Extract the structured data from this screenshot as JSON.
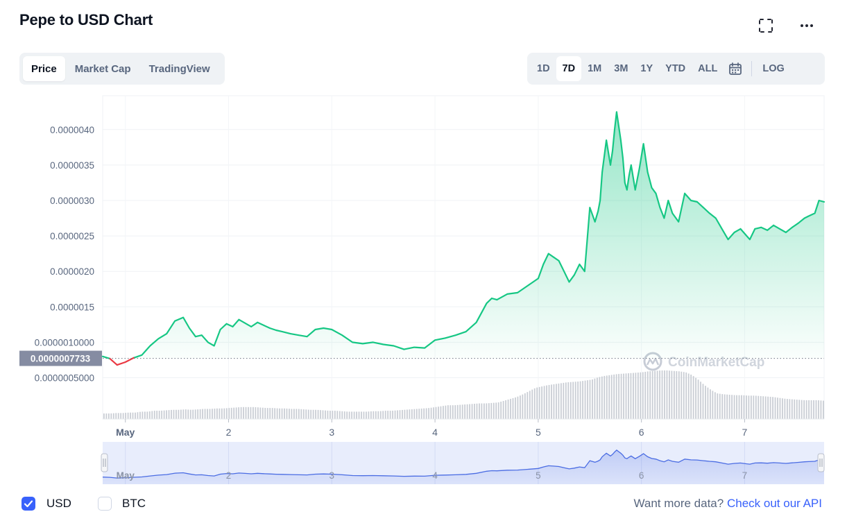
{
  "header": {
    "title": "Pepe to USD Chart"
  },
  "icons": {
    "fullscreen": "fullscreen-icon",
    "more": "more-horizontal-icon",
    "calendar": "calendar-icon"
  },
  "view_tabs": [
    {
      "label": "Price",
      "active": true
    },
    {
      "label": "Market Cap",
      "active": false
    },
    {
      "label": "TradingView",
      "active": false
    }
  ],
  "range_tabs": [
    {
      "label": "1D",
      "active": false
    },
    {
      "label": "7D",
      "active": true
    },
    {
      "label": "1M",
      "active": false
    },
    {
      "label": "3M",
      "active": false
    },
    {
      "label": "1Y",
      "active": false
    },
    {
      "label": "YTD",
      "active": false
    },
    {
      "label": "ALL",
      "active": false
    }
  ],
  "log_label": "LOG",
  "footer": {
    "usd_label": "USD",
    "usd_checked": true,
    "btc_label": "BTC",
    "btc_checked": false,
    "more_text": "Want more data?",
    "api_link": "Check out our API"
  },
  "colors": {
    "up": "#16c784",
    "down": "#ea3943",
    "accent": "#3861fb",
    "navigator": "#4a6ce3"
  },
  "chart_data": {
    "type": "line",
    "series_name": "Price (USD)",
    "watermark": "CoinMarketCap",
    "reference_price": 7.733e-07,
    "reference_label": "0.0000007733",
    "ylim": [
      0.0,
      4.5e-06
    ],
    "yticks": [
      5e-07,
      1e-06,
      1.5e-06,
      2e-06,
      2.5e-06,
      3e-06,
      3.5e-06,
      4e-06
    ],
    "ytick_labels": [
      "0.0000005000",
      "0.0000010000",
      "0.0000015",
      "0.0000020",
      "0.0000025",
      "0.0000030",
      "0.0000035",
      "0.0000040"
    ],
    "xlim": [
      0.78,
      7.77
    ],
    "xticks": [
      1,
      2,
      3,
      4,
      5,
      6,
      7
    ],
    "xtick_labels": [
      "May",
      "2",
      "3",
      "4",
      "5",
      "6",
      "7"
    ],
    "x": [
      0.78,
      0.85,
      0.92,
      1.0,
      1.08,
      1.16,
      1.24,
      1.32,
      1.4,
      1.48,
      1.56,
      1.62,
      1.68,
      1.74,
      1.8,
      1.86,
      1.92,
      1.98,
      2.04,
      2.1,
      2.16,
      2.22,
      2.28,
      2.34,
      2.4,
      2.46,
      2.52,
      2.6,
      2.68,
      2.76,
      2.84,
      2.92,
      3.0,
      3.1,
      3.2,
      3.3,
      3.4,
      3.5,
      3.6,
      3.7,
      3.8,
      3.9,
      4.0,
      4.1,
      4.2,
      4.3,
      4.4,
      4.5,
      4.55,
      4.6,
      4.7,
      4.8,
      4.9,
      5.0,
      5.05,
      5.1,
      5.15,
      5.2,
      5.25,
      5.3,
      5.35,
      5.4,
      5.45,
      5.5,
      5.55,
      5.58,
      5.6,
      5.62,
      5.66,
      5.7,
      5.72,
      5.74,
      5.76,
      5.78,
      5.8,
      5.82,
      5.84,
      5.86,
      5.88,
      5.9,
      5.94,
      5.98,
      6.02,
      6.06,
      6.1,
      6.14,
      6.18,
      6.22,
      6.26,
      6.3,
      6.36,
      6.42,
      6.48,
      6.54,
      6.6,
      6.66,
      6.72,
      6.78,
      6.84,
      6.9,
      6.96,
      7.02,
      7.05,
      7.1,
      7.16,
      7.22,
      7.28,
      7.34,
      7.4,
      7.46,
      7.52,
      7.58,
      7.62,
      7.68,
      7.72,
      7.77
    ],
    "y": [
      8e-07,
      7.7e-07,
      6.8e-07,
      7.2e-07,
      7.8e-07,
      8.2e-07,
      9.5e-07,
      1.05e-06,
      1.12e-06,
      1.3e-06,
      1.35e-06,
      1.2e-06,
      1.08e-06,
      1.1e-06,
      1e-06,
      9.5e-07,
      1.18e-06,
      1.26e-06,
      1.22e-06,
      1.32e-06,
      1.27e-06,
      1.22e-06,
      1.28e-06,
      1.24e-06,
      1.2e-06,
      1.17e-06,
      1.15e-06,
      1.12e-06,
      1.1e-06,
      1.08e-06,
      1.18e-06,
      1.2e-06,
      1.18e-06,
      1.1e-06,
      1e-06,
      9.8e-07,
      1e-06,
      9.7e-07,
      9.5e-07,
      9e-07,
      9.3e-07,
      9.2e-07,
      1.03e-06,
      1.06e-06,
      1.1e-06,
      1.15e-06,
      1.28e-06,
      1.55e-06,
      1.62e-06,
      1.6e-06,
      1.68e-06,
      1.7e-06,
      1.8e-06,
      1.9e-06,
      2.1e-06,
      2.25e-06,
      2.2e-06,
      2.15e-06,
      2e-06,
      1.85e-06,
      1.95e-06,
      2.1e-06,
      2e-06,
      2.9e-06,
      2.7e-06,
      2.85e-06,
      3e-06,
      3.4e-06,
      3.85e-06,
      3.5e-06,
      3.7e-06,
      4e-06,
      4.25e-06,
      4.05e-06,
      3.85e-06,
      3.6e-06,
      3.25e-06,
      3.15e-06,
      3.35e-06,
      3.5e-06,
      3.15e-06,
      3.45e-06,
      3.8e-06,
      3.4e-06,
      3.18e-06,
      3.1e-06,
      2.9e-06,
      2.75e-06,
      3e-06,
      2.82e-06,
      2.7e-06,
      3.1e-06,
      3e-06,
      2.98e-06,
      2.9e-06,
      2.82e-06,
      2.75e-06,
      2.6e-06,
      2.45e-06,
      2.55e-06,
      2.6e-06,
      2.5e-06,
      2.45e-06,
      2.6e-06,
      2.62e-06,
      2.58e-06,
      2.65e-06,
      2.6e-06,
      2.55e-06,
      2.62e-06,
      2.68e-06,
      2.75e-06,
      2.78e-06,
      2.82e-06,
      3e-06,
      2.98e-06
    ],
    "volume": [
      0.06,
      0.06,
      0.07,
      0.07,
      0.08,
      0.08,
      0.1,
      0.1,
      0.12,
      0.12,
      0.13,
      0.14,
      0.14,
      0.15,
      0.14,
      0.15,
      0.16,
      0.16,
      0.17,
      0.17,
      0.18,
      0.19,
      0.2,
      0.2,
      0.2,
      0.19,
      0.18,
      0.18,
      0.17,
      0.17,
      0.16,
      0.16,
      0.15,
      0.14,
      0.14,
      0.13,
      0.12,
      0.12,
      0.11,
      0.1,
      0.1,
      0.1,
      0.1,
      0.11,
      0.11,
      0.12,
      0.12,
      0.13,
      0.14,
      0.15,
      0.16,
      0.17,
      0.18,
      0.2,
      0.22,
      0.24,
      0.24,
      0.25,
      0.26,
      0.27,
      0.28,
      0.28,
      0.29,
      0.3,
      0.34,
      0.38,
      0.42,
      0.48,
      0.55,
      0.62,
      0.65,
      0.68,
      0.7,
      0.72,
      0.74,
      0.75,
      0.76,
      0.78,
      0.8,
      0.85,
      0.88,
      0.9,
      0.92,
      0.93,
      0.94,
      0.95,
      0.96,
      0.98,
      0.99,
      1.0,
      1.0,
      0.99,
      0.98,
      0.96,
      0.9,
      0.8,
      0.68,
      0.58,
      0.5,
      0.48,
      0.47,
      0.46,
      0.46,
      0.45,
      0.45,
      0.44,
      0.43,
      0.42,
      0.4,
      0.38,
      0.37,
      0.36,
      0.35,
      0.35,
      0.35,
      0.34
    ]
  }
}
